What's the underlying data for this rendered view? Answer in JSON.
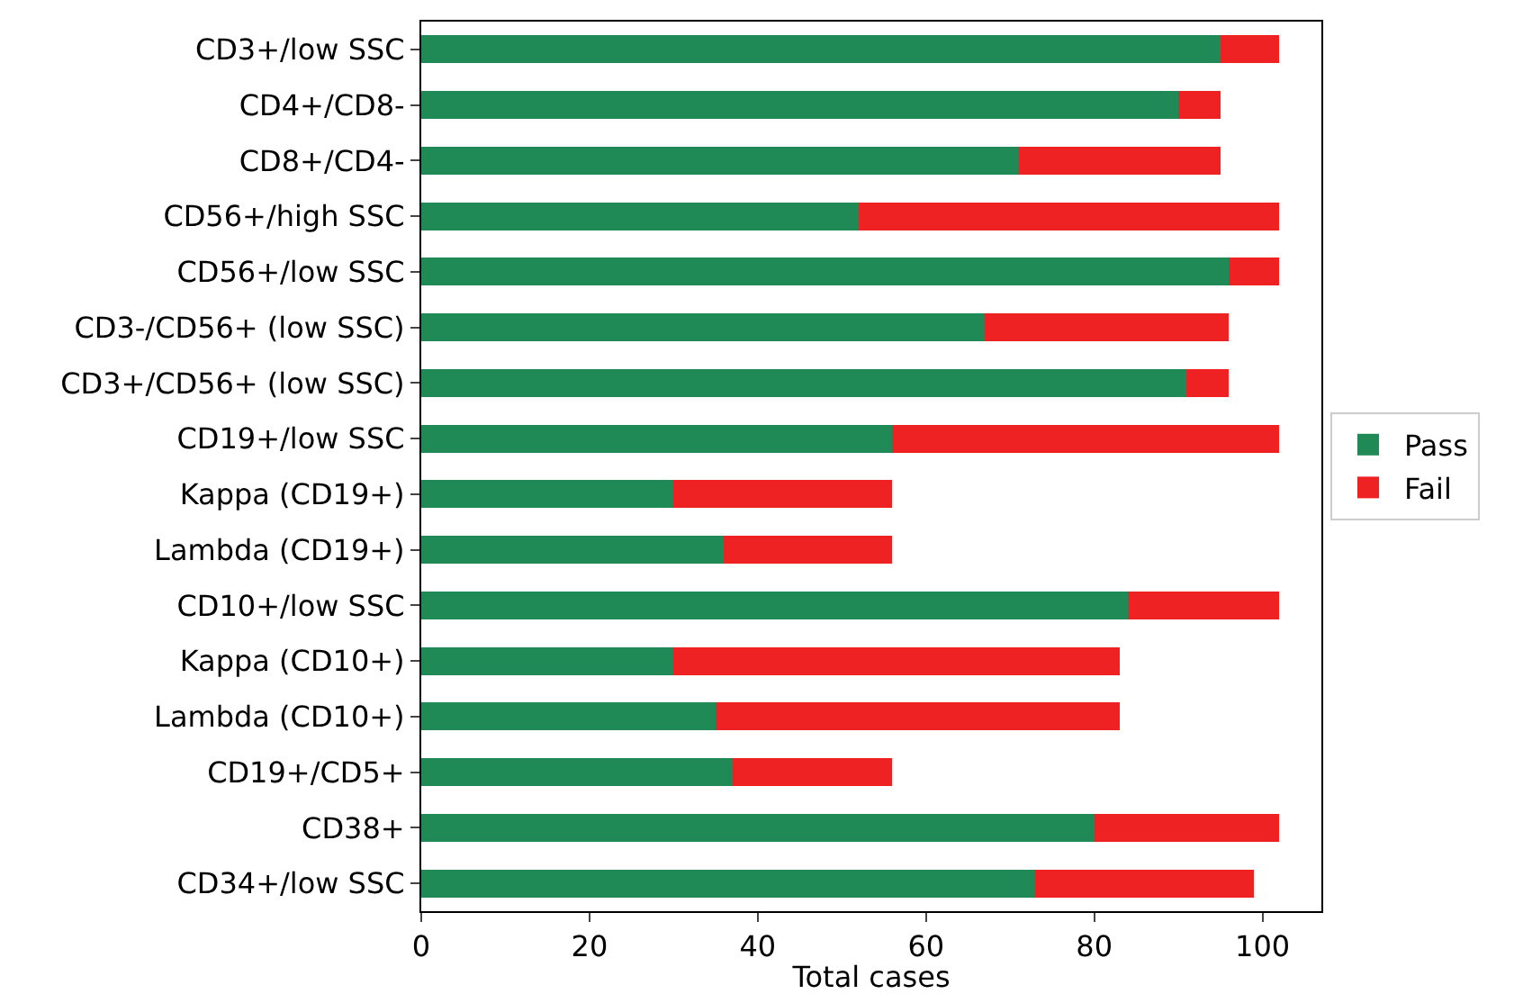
{
  "chart_data": {
    "type": "bar",
    "orientation": "horizontal",
    "stacked": true,
    "xlabel": "Total cases",
    "categories": [
      "CD3+/low SSC",
      "CD4+/CD8-",
      "CD8+/CD4-",
      "CD56+/high SSC",
      "CD56+/low SSC",
      "CD3-/CD56+ (low SSC)",
      "CD3+/CD56+ (low SSC)",
      "CD19+/low SSC",
      "Kappa (CD19+)",
      "Lambda (CD19+)",
      "CD10+/low SSC",
      "Kappa (CD10+)",
      "Lambda (CD10+)",
      "CD19+/CD5+",
      "CD38+",
      "CD34+/low SSC"
    ],
    "series": [
      {
        "name": "Pass",
        "color": "#1f8a55",
        "values": [
          95,
          90,
          71,
          52,
          96,
          67,
          91,
          56,
          30,
          36,
          84,
          30,
          35,
          37,
          80,
          73
        ]
      },
      {
        "name": "Fail",
        "color": "#ee2222",
        "values": [
          7,
          5,
          24,
          50,
          6,
          29,
          5,
          46,
          26,
          20,
          18,
          53,
          48,
          19,
          22,
          26
        ]
      }
    ],
    "xlim": [
      0,
      107
    ],
    "xticks": [
      0,
      20,
      40,
      60,
      80,
      100
    ],
    "grid": false,
    "legend": "right"
  }
}
